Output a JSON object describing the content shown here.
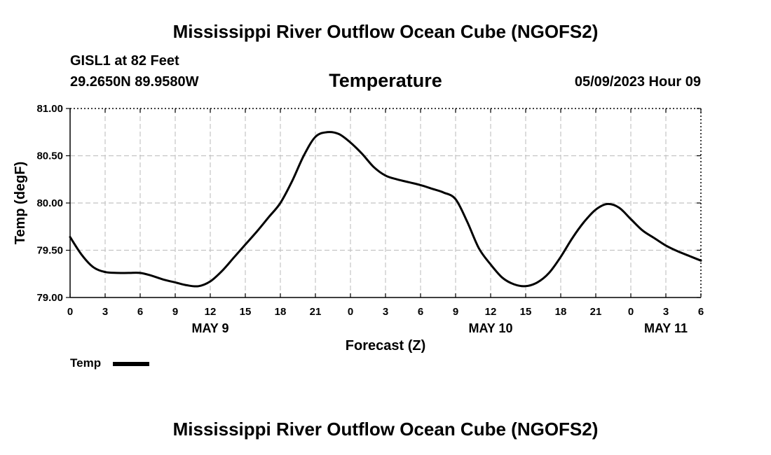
{
  "header": {
    "title": "Mississippi River Outflow Ocean Cube (NGOFS2)",
    "station": "GISL1 at 82 Feet",
    "coordinates": "29.2650N  89.9580W",
    "parameter": "Temperature",
    "datetime": "05/09/2023 Hour 09"
  },
  "legend": {
    "label": "Temp",
    "color": "#000000"
  },
  "footer": {
    "title": "Mississippi River Outflow Ocean Cube (NGOFS2)"
  },
  "chart_data": {
    "type": "line",
    "title": "Temperature",
    "xlabel": "Forecast (Z)",
    "ylabel": "Temp (degF)",
    "xlim": [
      0,
      54
    ],
    "ylim": [
      79.0,
      81.0
    ],
    "grid": true,
    "x_ticks": [
      0,
      3,
      6,
      9,
      12,
      15,
      18,
      21,
      24,
      27,
      30,
      33,
      36,
      39,
      42,
      45,
      48,
      51,
      54
    ],
    "x_tick_labels": [
      "0",
      "3",
      "6",
      "9",
      "12",
      "15",
      "18",
      "21",
      "0",
      "3",
      "6",
      "9",
      "12",
      "15",
      "18",
      "21",
      "0",
      "3",
      "6"
    ],
    "y_ticks": [
      79.0,
      79.5,
      80.0,
      80.5,
      81.0
    ],
    "y_tick_labels": [
      "79.00",
      "79.50",
      "80.00",
      "80.50",
      "81.00"
    ],
    "date_labels": [
      {
        "hour": 12,
        "label": "MAY 9"
      },
      {
        "hour": 36,
        "label": "MAY 10"
      },
      {
        "hour": 51,
        "label": "MAY 11"
      }
    ],
    "series": [
      {
        "name": "Temp",
        "x": [
          0,
          1,
          2,
          3,
          4,
          5,
          6,
          7,
          8,
          9,
          10,
          11,
          12,
          13,
          14,
          15,
          16,
          17,
          18,
          19,
          20,
          21,
          22,
          23,
          24,
          25,
          26,
          27,
          28,
          29,
          30,
          31,
          32,
          33,
          34,
          35,
          36,
          37,
          38,
          39,
          40,
          41,
          42,
          43,
          44,
          45,
          46,
          47,
          48,
          49,
          50,
          51,
          52,
          53,
          54
        ],
        "values": [
          79.64,
          79.45,
          79.32,
          79.27,
          79.26,
          79.26,
          79.26,
          79.23,
          79.19,
          79.16,
          79.13,
          79.12,
          79.17,
          79.28,
          79.42,
          79.56,
          79.7,
          79.85,
          80.0,
          80.23,
          80.5,
          80.7,
          80.75,
          80.73,
          80.64,
          80.52,
          80.38,
          80.29,
          80.25,
          80.22,
          80.19,
          80.15,
          80.11,
          80.04,
          79.8,
          79.52,
          79.35,
          79.21,
          79.14,
          79.12,
          79.16,
          79.26,
          79.43,
          79.63,
          79.8,
          79.93,
          79.99,
          79.95,
          79.83,
          79.71,
          79.63,
          79.55,
          79.49,
          79.44,
          79.39
        ]
      }
    ]
  }
}
